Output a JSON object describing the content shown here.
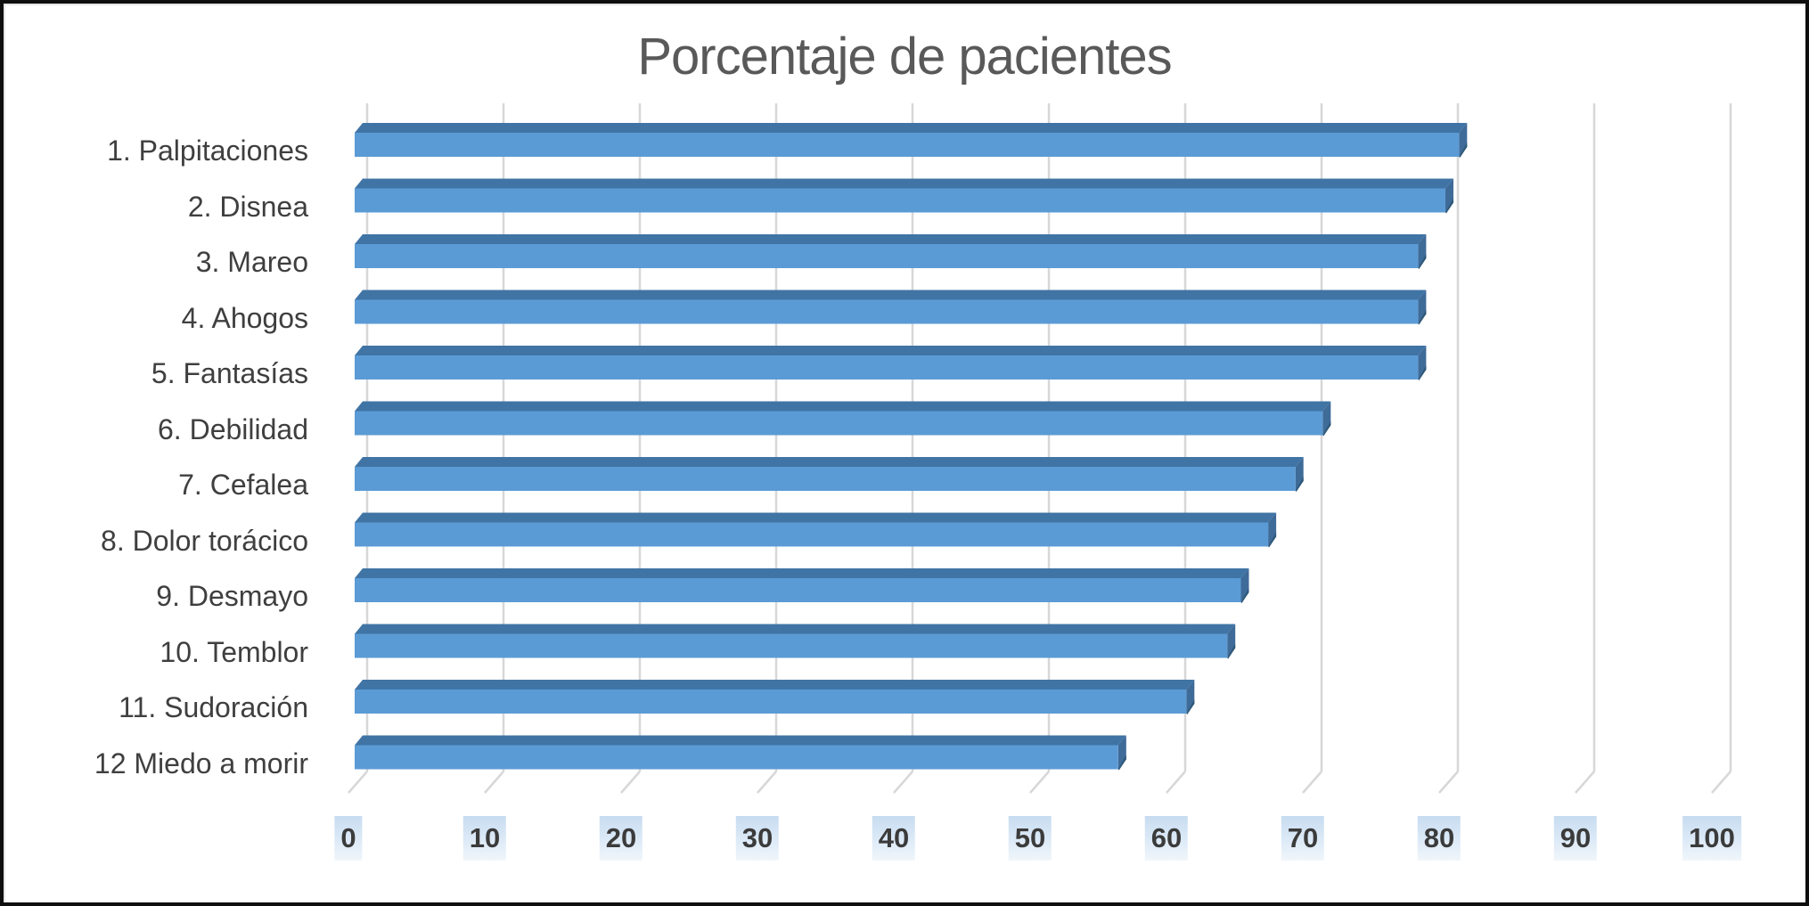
{
  "chart_data": {
    "type": "bar",
    "orientation": "horizontal",
    "style": "3d-excel",
    "title": "Porcentaje de pacientes",
    "categories": [
      "1. Palpitaciones",
      "2. Disnea",
      "3. Mareo",
      "4. Ahogos",
      "5. Fantasías",
      "6. Debilidad",
      "7. Cefalea",
      "8. Dolor torácico",
      "9. Desmayo",
      "10. Temblor",
      "11. Sudoración",
      "12 Miedo a morir"
    ],
    "values": [
      81,
      80,
      78,
      78,
      78,
      71,
      69,
      67,
      65,
      64,
      61,
      56
    ],
    "xlabel": "",
    "ylabel": "",
    "xlim": [
      0,
      100
    ],
    "x_ticks": [
      "0",
      "10",
      "20",
      "30",
      "40",
      "50",
      "60",
      "70",
      "80",
      "90",
      "100"
    ],
    "grid": true,
    "legend": false,
    "colors": {
      "bar_front": "#5B9BD5",
      "bar_top": "#4074A5",
      "bar_side": "#3F6B99",
      "bar_side_shadow": "#2E5878",
      "gridline": "#D7D7D7",
      "title": "#595959",
      "category_label": "#3F3F3F",
      "tick_label": "#3B3B3B",
      "tick_highlight_top": "#C7DCF0",
      "tick_highlight_bottom": "#F0F6FB"
    }
  }
}
